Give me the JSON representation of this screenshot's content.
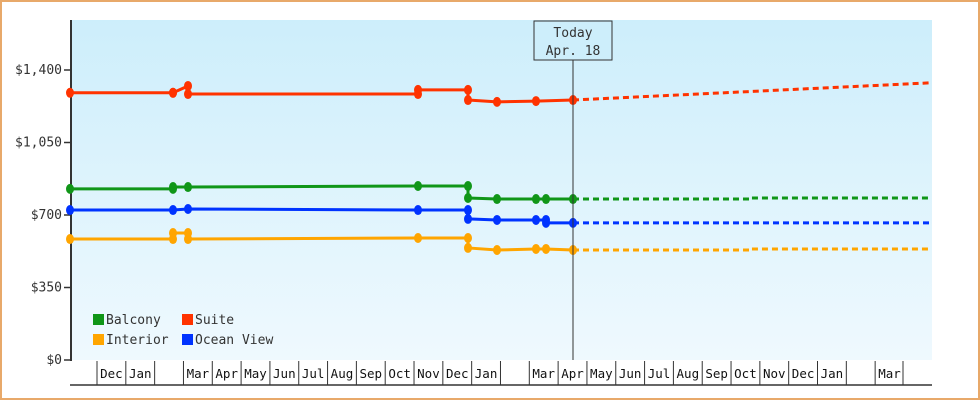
{
  "chart_data": {
    "type": "line",
    "title": "",
    "xlabel": "",
    "ylabel": "",
    "ylim": [
      0,
      1750
    ],
    "yticks": [
      {
        "value": 0,
        "label": "$0"
      },
      {
        "value": 350,
        "label": "$350"
      },
      {
        "value": 700,
        "label": "$700"
      },
      {
        "value": 1050,
        "label": "$1,050"
      },
      {
        "value": 1400,
        "label": "$1,400"
      }
    ],
    "x_month_labels": [
      "",
      "Dec",
      "Jan",
      "",
      "Mar",
      "Apr",
      "May",
      "Jun",
      "Jul",
      "Aug",
      "Sep",
      "Oct",
      "Nov",
      "Dec",
      "Jan",
      "",
      "Mar",
      "Apr",
      "May",
      "Jun",
      "Jul",
      "Aug",
      "Sep",
      "Oct",
      "Nov",
      "Dec",
      "Jan",
      "",
      "Mar"
    ],
    "today_marker": {
      "line1": "Today",
      "line2": "Apr. 18"
    },
    "legend": [
      {
        "name": "Balcony",
        "color": "#109618"
      },
      {
        "name": "Suite",
        "color": "#ff3300"
      },
      {
        "name": "Interior",
        "color": "#ffa500"
      },
      {
        "name": "Ocean View",
        "color": "#0033ff"
      }
    ],
    "legend_position": "bottom-left inside",
    "grid": false,
    "series": [
      {
        "name": "Suite",
        "color": "#ff3300",
        "history": [
          {
            "x": "Nov (yr1)",
            "value": 1290
          },
          {
            "x": "Mar (yr2)",
            "value": 1290
          },
          {
            "x": "Mar (yr2)",
            "value": 1323
          },
          {
            "x": "Mar (yr2)",
            "value": 1323
          },
          {
            "x": "Mar (yr2)",
            "value": 1284
          },
          {
            "x": "Nov (yr2)",
            "value": 1284
          },
          {
            "x": "Nov (yr2)",
            "value": 1304
          },
          {
            "x": "Dec (yr2)",
            "value": 1304
          },
          {
            "x": "Dec (yr2)",
            "value": 1255
          },
          {
            "x": "Jan (yr3)",
            "value": 1246
          },
          {
            "x": "Mar (yr3)",
            "value": 1250
          },
          {
            "x": "Apr 18 (yr3)",
            "value": 1255
          }
        ],
        "forecast": [
          {
            "x": "Apr 18 (yr3)",
            "value": 1255
          },
          {
            "x": "Mar (yr4)",
            "value": 1338
          }
        ]
      },
      {
        "name": "Balcony",
        "color": "#109618",
        "history": [
          {
            "x": "Nov (yr1)",
            "value": 826
          },
          {
            "x": "Mar (yr2)",
            "value": 826
          },
          {
            "x": "Mar (yr2)",
            "value": 835
          },
          {
            "x": "Mar (yr2)",
            "value": 835
          },
          {
            "x": "Nov (yr2)",
            "value": 840
          },
          {
            "x": "Dec (yr2)",
            "value": 840
          },
          {
            "x": "Dec (yr2)",
            "value": 782
          },
          {
            "x": "Jan (yr3)",
            "value": 777
          },
          {
            "x": "Mar (yr3)",
            "value": 777
          },
          {
            "x": "Apr 18 (yr3)",
            "value": 777
          }
        ],
        "forecast": [
          {
            "x": "Apr 18 (yr3)",
            "value": 777
          },
          {
            "x": "Oct (yr3)",
            "value": 777
          },
          {
            "x": "Oct (yr3)",
            "value": 782
          },
          {
            "x": "Mar (yr4)",
            "value": 782
          }
        ]
      },
      {
        "name": "Ocean View",
        "color": "#0033ff",
        "history": [
          {
            "x": "Nov (yr1)",
            "value": 724
          },
          {
            "x": "Mar (yr2)",
            "value": 724
          },
          {
            "x": "Mar (yr2)",
            "value": 729
          },
          {
            "x": "Nov (yr2)",
            "value": 724
          },
          {
            "x": "Dec (yr2)",
            "value": 724
          },
          {
            "x": "Dec (yr2)",
            "value": 681
          },
          {
            "x": "Jan (yr3)",
            "value": 676
          },
          {
            "x": "Mar (yr3)",
            "value": 676
          },
          {
            "x": "Mar (yr3)",
            "value": 662
          },
          {
            "x": "Apr 18 (yr3)",
            "value": 662
          }
        ],
        "forecast": [
          {
            "x": "Apr 18 (yr3)",
            "value": 662
          },
          {
            "x": "Mar (yr4)",
            "value": 662
          }
        ]
      },
      {
        "name": "Interior",
        "color": "#ffa500",
        "history": [
          {
            "x": "Nov (yr1)",
            "value": 584
          },
          {
            "x": "Mar (yr2)",
            "value": 584
          },
          {
            "x": "Mar (yr2)",
            "value": 613
          },
          {
            "x": "Mar (yr2)",
            "value": 613
          },
          {
            "x": "Mar (yr2)",
            "value": 584
          },
          {
            "x": "Nov (yr2)",
            "value": 589
          },
          {
            "x": "Dec (yr2)",
            "value": 589
          },
          {
            "x": "Dec (yr2)",
            "value": 541
          },
          {
            "x": "Jan (yr3)",
            "value": 531
          },
          {
            "x": "Mar (yr3)",
            "value": 536
          },
          {
            "x": "Apr 18 (yr3)",
            "value": 531
          }
        ],
        "forecast": [
          {
            "x": "Apr 18 (yr3)",
            "value": 531
          },
          {
            "x": "Oct (yr3)",
            "value": 531
          },
          {
            "x": "Oct (yr3)",
            "value": 536
          },
          {
            "x": "Mar (yr4)",
            "value": 536
          }
        ]
      }
    ]
  }
}
